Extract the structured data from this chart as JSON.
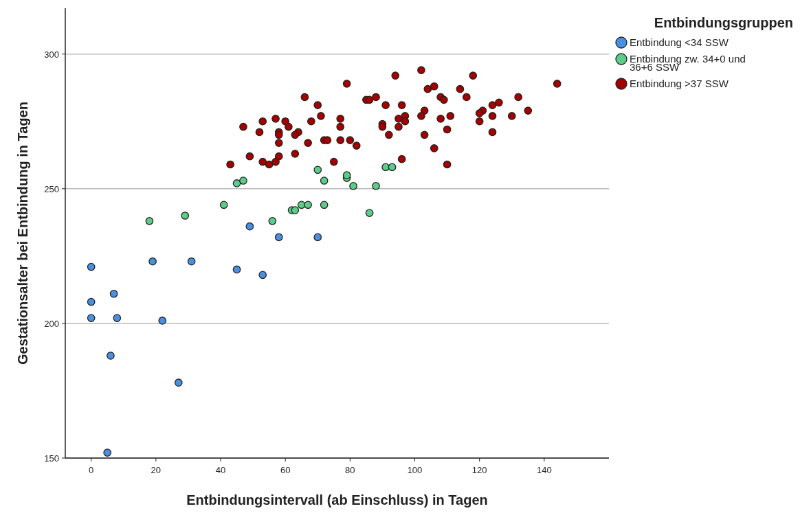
{
  "chart_data": {
    "type": "scatter",
    "xlabel": "Entbindungsintervall (ab Einschluss) in Tagen",
    "ylabel": "Gestationsalter bei Entbindung in Tagen",
    "legend_title": "Entbindungsgruppen",
    "legend": "top right",
    "grid": "y",
    "marker": "circle",
    "xlim": [
      -8,
      160
    ],
    "ylim": [
      150,
      317
    ],
    "xticks": [
      0,
      20,
      40,
      60,
      80,
      100,
      120,
      140
    ],
    "yticks": [
      150,
      200,
      250,
      300
    ],
    "series": [
      {
        "name": "Entbindung <34 SSW",
        "color": "#4a90e2",
        "x": [
          0,
          0,
          0,
          19,
          31,
          7,
          8,
          22,
          6,
          27,
          5,
          45,
          53,
          58,
          70,
          49
        ],
        "values": [
          221,
          208,
          202,
          223,
          223,
          211,
          202,
          201,
          188,
          178,
          152,
          220,
          218,
          232,
          232,
          236
        ]
      },
      {
        "name": "Entbindung zw. 34+0 und 36+6 SSW",
        "color": "#5ccc8a",
        "x": [
          18,
          29,
          41,
          45,
          47,
          56,
          62,
          63,
          65,
          67,
          70,
          72,
          72,
          79,
          79,
          81,
          88,
          86,
          91,
          93
        ],
        "values": [
          238,
          240,
          244,
          252,
          253,
          238,
          242,
          242,
          244,
          244,
          257,
          253,
          244,
          254,
          255,
          251,
          251,
          241,
          258,
          258
        ]
      },
      {
        "name": "Entbindung >37 SSW",
        "color": "#a50000",
        "x": [
          66,
          70,
          71,
          47,
          53,
          57,
          60,
          61,
          68,
          52,
          58,
          58,
          64,
          63,
          58,
          67,
          72,
          63,
          49,
          58,
          53,
          55,
          57,
          43,
          79,
          94,
          102,
          118,
          144,
          104,
          106,
          114,
          116,
          108,
          109,
          85,
          86,
          88,
          132,
          91,
          96,
          103,
          124,
          126,
          121,
          120,
          135,
          77,
          95,
          97,
          97,
          102,
          108,
          111,
          124,
          130,
          120,
          77,
          90,
          90,
          95,
          92,
          103,
          110,
          124,
          73,
          77,
          80,
          82,
          106,
          75,
          96,
          110
        ],
        "values": [
          284,
          281,
          277,
          273,
          275,
          276,
          275,
          273,
          275,
          271,
          271,
          270,
          271,
          270,
          267,
          267,
          268,
          263,
          262,
          262,
          260,
          259,
          260,
          259,
          289,
          292,
          294,
          292,
          289,
          287,
          288,
          287,
          284,
          284,
          283,
          283,
          283,
          284,
          284,
          281,
          281,
          279,
          281,
          282,
          279,
          278,
          279,
          276,
          276,
          277,
          275,
          277,
          276,
          277,
          277,
          277,
          275,
          273,
          274,
          273,
          273,
          270,
          270,
          272,
          271,
          268,
          268,
          268,
          266,
          265,
          260,
          261,
          259
        ]
      }
    ]
  }
}
